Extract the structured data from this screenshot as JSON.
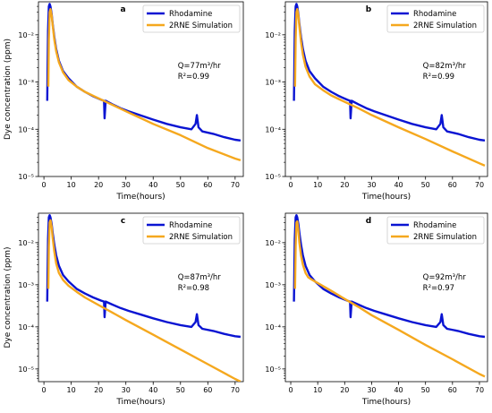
{
  "chart_data": [
    {
      "type": "line",
      "panel_label": "a",
      "xlabel": "Time(hours)",
      "ylabel": "Dye concentration (ppm)",
      "xlim": [
        -2,
        73
      ],
      "ylim": [
        1e-05,
        0.05
      ],
      "yscale": "log",
      "x_ticks": [
        0,
        10,
        20,
        30,
        40,
        50,
        60,
        70
      ],
      "x_tick_labels": [
        "0",
        "10",
        "20",
        "30",
        "40",
        "50",
        "60",
        "70"
      ],
      "y_ticks": [
        1e-05,
        0.0001,
        0.001,
        0.01
      ],
      "y_tick_labels": [
        "10⁻⁵",
        "10⁻⁴",
        "10⁻³",
        "10⁻²"
      ],
      "legend_position": "top-right",
      "annotation": {
        "q_line": "Q=77m³/hr",
        "r2_line": "R²=0.99"
      },
      "series": [
        {
          "name": "Rhodamine",
          "color": "#0a14d2",
          "x": [
            1.2,
            1.3,
            1.5,
            1.8,
            2.1,
            2.4,
            2.8,
            3.2,
            3.8,
            4.5,
            5.5,
            7,
            9,
            12,
            15,
            18,
            21,
            22,
            22.2,
            22.6,
            25,
            28,
            31,
            35,
            40,
            45,
            50,
            54,
            55.5,
            56,
            56.6,
            58,
            62,
            66,
            70,
            72
          ],
          "y": [
            0.0004,
            0.0013,
            0.012,
            0.04,
            0.045,
            0.04,
            0.028,
            0.017,
            0.009,
            0.005,
            0.0028,
            0.0017,
            0.0012,
            0.0008,
            0.00062,
            0.0005,
            0.00042,
            0.0004,
            0.00017,
            0.0004,
            0.00034,
            0.00028,
            0.00024,
            0.0002,
            0.00016,
            0.00013,
            0.00011,
            0.0001,
            0.00013,
            0.0002,
            0.00011,
            9e-05,
            8e-05,
            6.8e-05,
            6e-05,
            5.8e-05
          ]
        },
        {
          "name": "2RNE Simulation",
          "color": "#f5a81e",
          "x": [
            1.6,
            1.8,
            2.1,
            2.4,
            2.8,
            3.2,
            3.8,
            4.5,
            5.5,
            7,
            9,
            12,
            15,
            20,
            25,
            30,
            40,
            50,
            60,
            70,
            72
          ],
          "y": [
            0.0008,
            0.008,
            0.03,
            0.035,
            0.026,
            0.016,
            0.008,
            0.0045,
            0.0026,
            0.0016,
            0.0011,
            0.0008,
            0.00062,
            0.00045,
            0.00033,
            0.00024,
            0.00013,
            7.5e-05,
            4e-05,
            2.4e-05,
            2.2e-05
          ]
        }
      ]
    },
    {
      "type": "line",
      "panel_label": "b",
      "xlabel": "Time(hours)",
      "ylabel": "",
      "xlim": [
        -2,
        73
      ],
      "ylim": [
        1e-05,
        0.05
      ],
      "yscale": "log",
      "x_ticks": [
        0,
        10,
        20,
        30,
        40,
        50,
        60,
        70
      ],
      "x_tick_labels": [
        "0",
        "10",
        "20",
        "30",
        "40",
        "50",
        "60",
        "70"
      ],
      "y_ticks": [
        1e-05,
        0.0001,
        0.001,
        0.01
      ],
      "y_tick_labels": [
        "10⁻⁵",
        "10⁻⁴",
        "10⁻³",
        "10⁻²"
      ],
      "legend_position": "top-right",
      "annotation": {
        "q_line": "Q=82m³/hr",
        "r2_line": "R²=0.99"
      },
      "series": [
        {
          "name": "Rhodamine",
          "color": "#0a14d2",
          "x": [
            1.2,
            1.3,
            1.5,
            1.8,
            2.1,
            2.4,
            2.8,
            3.2,
            3.8,
            4.5,
            5.5,
            7,
            9,
            12,
            15,
            18,
            21,
            22,
            22.2,
            22.6,
            25,
            28,
            31,
            35,
            40,
            45,
            50,
            54,
            55.5,
            56,
            56.6,
            58,
            62,
            66,
            70,
            72
          ],
          "y": [
            0.0004,
            0.0013,
            0.012,
            0.04,
            0.045,
            0.04,
            0.028,
            0.017,
            0.009,
            0.005,
            0.0028,
            0.0017,
            0.0012,
            0.0008,
            0.00062,
            0.0005,
            0.00042,
            0.0004,
            0.00017,
            0.0004,
            0.00034,
            0.00028,
            0.00024,
            0.0002,
            0.00016,
            0.00013,
            0.00011,
            0.0001,
            0.00013,
            0.0002,
            0.00011,
            9e-05,
            8e-05,
            6.8e-05,
            6e-05,
            5.8e-05
          ]
        },
        {
          "name": "2RNE Simulation",
          "color": "#f5a81e",
          "x": [
            1.6,
            1.8,
            2.1,
            2.4,
            2.8,
            3.2,
            3.8,
            4.5,
            5.5,
            7,
            9,
            12,
            15,
            20,
            25,
            30,
            40,
            50,
            60,
            70,
            72
          ],
          "y": [
            0.0008,
            0.008,
            0.03,
            0.035,
            0.026,
            0.015,
            0.0072,
            0.0038,
            0.0021,
            0.0013,
            0.0009,
            0.00067,
            0.00052,
            0.00038,
            0.00028,
            0.0002,
            0.00011,
            6.2e-05,
            3.4e-05,
            1.9e-05,
            1.7e-05
          ]
        }
      ]
    },
    {
      "type": "line",
      "panel_label": "c",
      "xlabel": "Time(hours)",
      "ylabel": "Dye concentration (ppm)",
      "xlim": [
        -2,
        73
      ],
      "ylim": [
        5e-06,
        0.05
      ],
      "yscale": "log",
      "x_ticks": [
        0,
        10,
        20,
        30,
        40,
        50,
        60,
        70
      ],
      "x_tick_labels": [
        "0",
        "10",
        "20",
        "30",
        "40",
        "50",
        "60",
        "70"
      ],
      "y_ticks": [
        1e-05,
        0.0001,
        0.001,
        0.01
      ],
      "y_tick_labels": [
        "10⁻⁵",
        "10⁻⁴",
        "10⁻³",
        "10⁻²"
      ],
      "legend_position": "top-right",
      "annotation": {
        "q_line": "Q=87m³/hr",
        "r2_line": "R²=0.98"
      },
      "series": [
        {
          "name": "Rhodamine",
          "color": "#0a14d2",
          "x": [
            1.2,
            1.3,
            1.5,
            1.8,
            2.1,
            2.4,
            2.8,
            3.2,
            3.8,
            4.5,
            5.5,
            7,
            9,
            12,
            15,
            18,
            21,
            22,
            22.2,
            22.6,
            25,
            28,
            31,
            35,
            40,
            45,
            50,
            54,
            55.5,
            56,
            56.6,
            58,
            62,
            66,
            70,
            72
          ],
          "y": [
            0.0004,
            0.0013,
            0.012,
            0.04,
            0.045,
            0.04,
            0.028,
            0.017,
            0.009,
            0.005,
            0.0028,
            0.0017,
            0.0012,
            0.0008,
            0.00062,
            0.0005,
            0.00042,
            0.0004,
            0.00017,
            0.0004,
            0.00034,
            0.00028,
            0.00024,
            0.0002,
            0.00016,
            0.00013,
            0.00011,
            0.0001,
            0.00013,
            0.0002,
            0.00011,
            9e-05,
            8e-05,
            6.8e-05,
            6e-05,
            5.8e-05
          ]
        },
        {
          "name": "2RNE Simulation",
          "color": "#f5a81e",
          "x": [
            1.6,
            1.8,
            2.1,
            2.4,
            2.8,
            3.2,
            3.8,
            4.5,
            5.5,
            7,
            9,
            12,
            15,
            20,
            25,
            30,
            40,
            50,
            60,
            70,
            72
          ],
          "y": [
            0.0008,
            0.008,
            0.03,
            0.034,
            0.024,
            0.013,
            0.0062,
            0.0032,
            0.0019,
            0.0013,
            0.00095,
            0.00068,
            0.0005,
            0.00033,
            0.00022,
            0.000145,
            6.5e-05,
            2.9e-05,
            1.3e-05,
            5.8e-06,
            5e-06
          ]
        }
      ]
    },
    {
      "type": "line",
      "panel_label": "d",
      "xlabel": "Time(hours)",
      "ylabel": "",
      "xlim": [
        -2,
        73
      ],
      "ylim": [
        5e-06,
        0.05
      ],
      "yscale": "log",
      "x_ticks": [
        0,
        10,
        20,
        30,
        40,
        50,
        60,
        70
      ],
      "x_tick_labels": [
        "0",
        "10",
        "20",
        "30",
        "40",
        "50",
        "60",
        "70"
      ],
      "y_ticks": [
        1e-05,
        0.0001,
        0.001,
        0.01
      ],
      "y_tick_labels": [
        "10⁻⁵",
        "10⁻⁴",
        "10⁻³",
        "10⁻²"
      ],
      "legend_position": "top-right",
      "annotation": {
        "q_line": "Q=92m³/hr",
        "r2_line": "R²=0.97"
      },
      "series": [
        {
          "name": "Rhodamine",
          "color": "#0a14d2",
          "x": [
            1.2,
            1.3,
            1.5,
            1.8,
            2.1,
            2.4,
            2.8,
            3.2,
            3.8,
            4.5,
            5.5,
            7,
            9,
            12,
            15,
            18,
            21,
            22,
            22.2,
            22.6,
            25,
            28,
            31,
            35,
            40,
            45,
            50,
            54,
            55.5,
            56,
            56.6,
            58,
            62,
            66,
            70,
            72
          ],
          "y": [
            0.0004,
            0.0013,
            0.012,
            0.04,
            0.045,
            0.04,
            0.028,
            0.017,
            0.009,
            0.005,
            0.0028,
            0.0017,
            0.0012,
            0.0008,
            0.00062,
            0.0005,
            0.00042,
            0.0004,
            0.00017,
            0.0004,
            0.00034,
            0.00028,
            0.00024,
            0.0002,
            0.00016,
            0.00013,
            0.00011,
            0.0001,
            0.00013,
            0.0002,
            0.00011,
            9e-05,
            8e-05,
            6.8e-05,
            6e-05,
            5.8e-05
          ]
        },
        {
          "name": "2RNE Simulation",
          "color": "#f5a81e",
          "x": [
            1.6,
            1.8,
            2.1,
            2.4,
            2.8,
            3.2,
            3.8,
            4.5,
            5.5,
            6.5,
            8,
            10,
            15,
            20,
            25,
            30,
            40,
            50,
            60,
            70,
            72
          ],
          "y": [
            0.0008,
            0.008,
            0.03,
            0.032,
            0.02,
            0.01,
            0.005,
            0.003,
            0.0019,
            0.0015,
            0.0013,
            0.0011,
            0.00072,
            0.00046,
            0.0003,
            0.00019,
            8.5e-05,
            3.7e-05,
            1.7e-05,
            7.6e-06,
            6.6e-06
          ]
        }
      ]
    }
  ]
}
